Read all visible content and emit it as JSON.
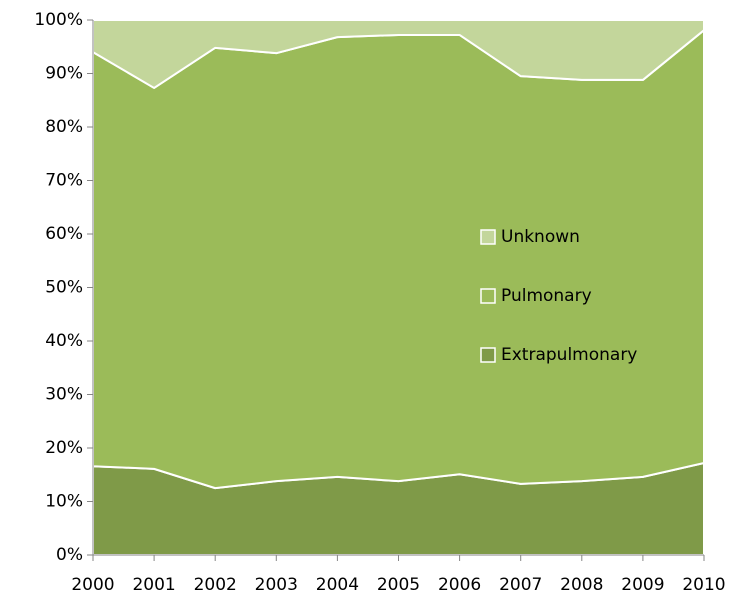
{
  "chart_data": {
    "type": "stacked_area",
    "categories": [
      "2000",
      "2001",
      "2002",
      "2003",
      "2004",
      "2005",
      "2006",
      "2007",
      "2008",
      "2009",
      "2010"
    ],
    "series": [
      {
        "name": "Extrapulmonary",
        "color": "#7f9a48",
        "values": [
          16.6,
          16.1,
          12.5,
          13.8,
          14.6,
          13.8,
          15.1,
          13.3,
          13.8,
          14.6,
          17.2
        ]
      },
      {
        "name": "Pulmonary",
        "color": "#9bbb59",
        "values": [
          77.4,
          71.2,
          82.3,
          80.0,
          82.2,
          83.4,
          82.1,
          76.2,
          75.0,
          74.2,
          80.9
        ]
      },
      {
        "name": "Unknown",
        "color": "#c3d69b",
        "values": [
          6.0,
          12.7,
          5.2,
          6.2,
          3.2,
          2.8,
          2.8,
          10.5,
          11.2,
          11.2,
          1.9
        ]
      }
    ],
    "ylim": [
      0,
      100
    ],
    "yticks": [
      {
        "value": 0,
        "label": "0%"
      },
      {
        "value": 10,
        "label": "10%"
      },
      {
        "value": 20,
        "label": "20%"
      },
      {
        "value": 30,
        "label": "30%"
      },
      {
        "value": 40,
        "label": "40%"
      },
      {
        "value": 50,
        "label": "50%"
      },
      {
        "value": 60,
        "label": "60%"
      },
      {
        "value": 70,
        "label": "70%"
      },
      {
        "value": 80,
        "label": "80%"
      },
      {
        "value": 90,
        "label": "90%"
      },
      {
        "value": 100,
        "label": "100%"
      }
    ]
  }
}
